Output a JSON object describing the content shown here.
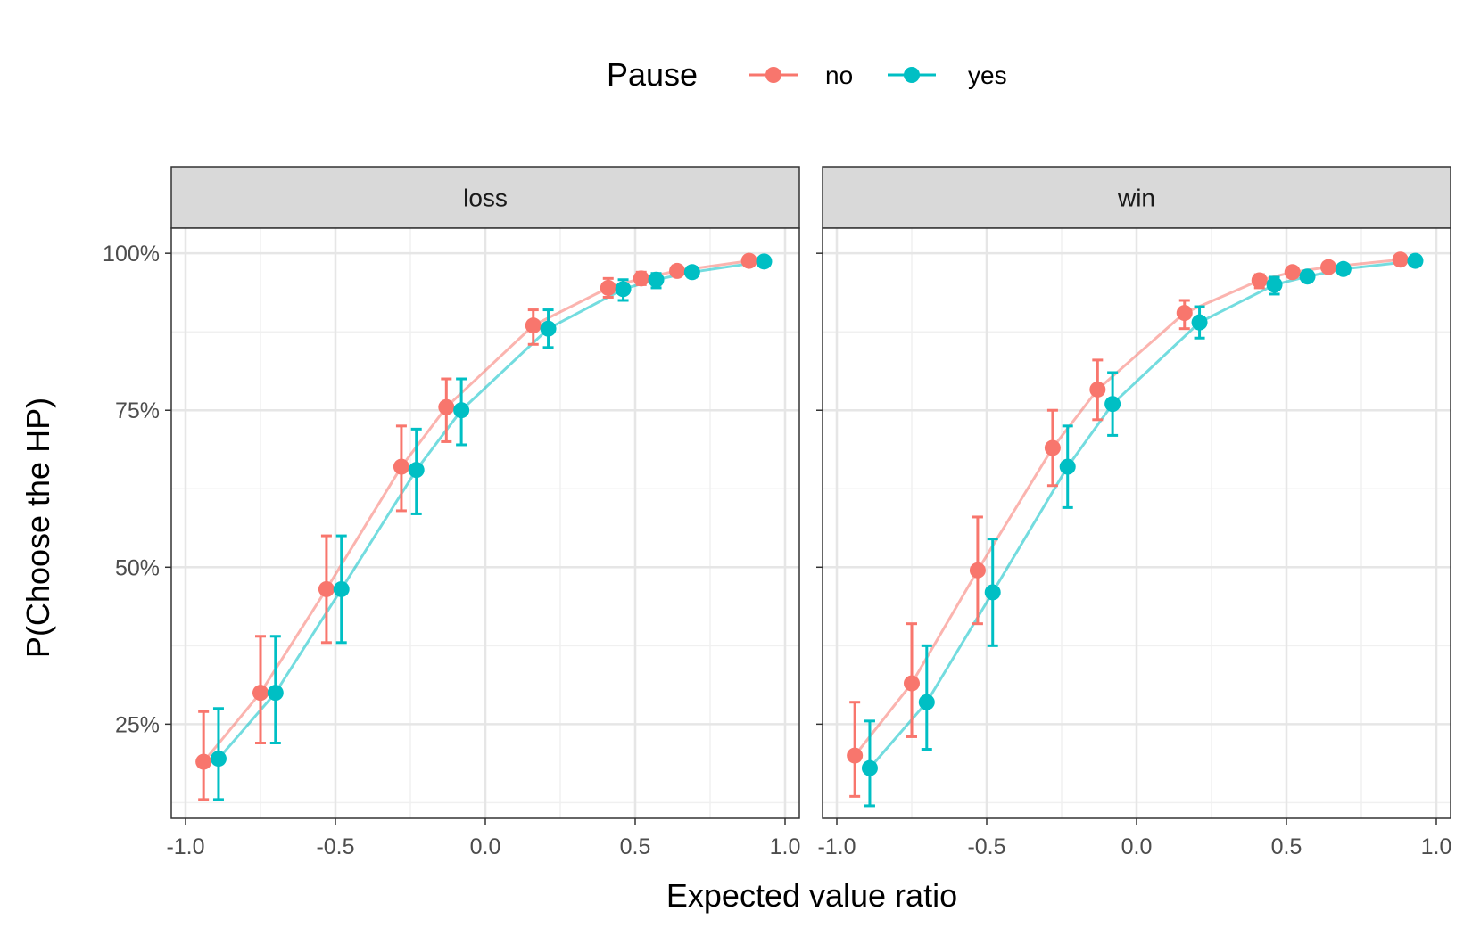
{
  "chart_data": {
    "type": "line",
    "facets": [
      "loss",
      "win"
    ],
    "xlabel": "Expected value ratio",
    "ylabel": "P(Choose the HP)",
    "xlim": [
      -1.0,
      1.0
    ],
    "ylim": [
      0.1,
      1.04
    ],
    "x_ticks": [
      -1.0,
      -0.5,
      0.0,
      0.5,
      1.0
    ],
    "x_tick_labels": [
      "-1.0",
      "-0.5",
      "0.0",
      "0.5",
      "1.0"
    ],
    "y_ticks": [
      0.25,
      0.5,
      0.75,
      1.0
    ],
    "y_tick_labels": [
      "25%",
      "50%",
      "75%",
      "100%"
    ],
    "grid": true,
    "legend": {
      "title": "Pause",
      "position": "top",
      "entries": [
        {
          "label": "no",
          "color": "#F8766D"
        },
        {
          "label": "yes",
          "color": "#00BFC4"
        }
      ]
    },
    "panels": [
      {
        "facet": "loss",
        "series": [
          {
            "name": "no",
            "color": "#F8766D",
            "points": [
              {
                "x": -0.94,
                "y": 0.19,
                "lo": 0.13,
                "hi": 0.27
              },
              {
                "x": -0.75,
                "y": 0.3,
                "lo": 0.22,
                "hi": 0.39
              },
              {
                "x": -0.53,
                "y": 0.465,
                "lo": 0.38,
                "hi": 0.55
              },
              {
                "x": -0.28,
                "y": 0.66,
                "lo": 0.59,
                "hi": 0.725
              },
              {
                "x": -0.13,
                "y": 0.755,
                "lo": 0.7,
                "hi": 0.8
              },
              {
                "x": 0.16,
                "y": 0.885,
                "lo": 0.855,
                "hi": 0.91
              },
              {
                "x": 0.41,
                "y": 0.945,
                "lo": 0.93,
                "hi": 0.96
              },
              {
                "x": 0.52,
                "y": 0.96,
                "lo": 0.95,
                "hi": 0.97
              },
              {
                "x": 0.64,
                "y": 0.972,
                "lo": 0.965,
                "hi": 0.98
              },
              {
                "x": 0.88,
                "y": 0.988,
                "lo": 0.985,
                "hi": 0.991
              }
            ]
          },
          {
            "name": "yes",
            "color": "#00BFC4",
            "points": [
              {
                "x": -0.89,
                "y": 0.195,
                "lo": 0.13,
                "hi": 0.275
              },
              {
                "x": -0.7,
                "y": 0.3,
                "lo": 0.22,
                "hi": 0.39
              },
              {
                "x": -0.48,
                "y": 0.465,
                "lo": 0.38,
                "hi": 0.55
              },
              {
                "x": -0.23,
                "y": 0.655,
                "lo": 0.585,
                "hi": 0.72
              },
              {
                "x": -0.08,
                "y": 0.75,
                "lo": 0.695,
                "hi": 0.8
              },
              {
                "x": 0.21,
                "y": 0.88,
                "lo": 0.85,
                "hi": 0.91
              },
              {
                "x": 0.46,
                "y": 0.943,
                "lo": 0.925,
                "hi": 0.958
              },
              {
                "x": 0.57,
                "y": 0.958,
                "lo": 0.945,
                "hi": 0.968
              },
              {
                "x": 0.69,
                "y": 0.97,
                "lo": 0.962,
                "hi": 0.978
              },
              {
                "x": 0.93,
                "y": 0.987,
                "lo": 0.984,
                "hi": 0.99
              }
            ]
          }
        ]
      },
      {
        "facet": "win",
        "series": [
          {
            "name": "no",
            "color": "#F8766D",
            "points": [
              {
                "x": -0.94,
                "y": 0.2,
                "lo": 0.135,
                "hi": 0.285
              },
              {
                "x": -0.75,
                "y": 0.315,
                "lo": 0.23,
                "hi": 0.41
              },
              {
                "x": -0.53,
                "y": 0.495,
                "lo": 0.41,
                "hi": 0.58
              },
              {
                "x": -0.28,
                "y": 0.69,
                "lo": 0.63,
                "hi": 0.75
              },
              {
                "x": -0.13,
                "y": 0.783,
                "lo": 0.735,
                "hi": 0.83
              },
              {
                "x": 0.16,
                "y": 0.905,
                "lo": 0.88,
                "hi": 0.925
              },
              {
                "x": 0.41,
                "y": 0.957,
                "lo": 0.945,
                "hi": 0.966
              },
              {
                "x": 0.52,
                "y": 0.97,
                "lo": 0.962,
                "hi": 0.976
              },
              {
                "x": 0.64,
                "y": 0.978,
                "lo": 0.972,
                "hi": 0.984
              },
              {
                "x": 0.88,
                "y": 0.99,
                "lo": 0.987,
                "hi": 0.993
              }
            ]
          },
          {
            "name": "yes",
            "color": "#00BFC4",
            "points": [
              {
                "x": -0.89,
                "y": 0.18,
                "lo": 0.12,
                "hi": 0.255
              },
              {
                "x": -0.7,
                "y": 0.285,
                "lo": 0.21,
                "hi": 0.375
              },
              {
                "x": -0.48,
                "y": 0.46,
                "lo": 0.375,
                "hi": 0.545
              },
              {
                "x": -0.23,
                "y": 0.66,
                "lo": 0.595,
                "hi": 0.725
              },
              {
                "x": -0.08,
                "y": 0.76,
                "lo": 0.71,
                "hi": 0.81
              },
              {
                "x": 0.21,
                "y": 0.89,
                "lo": 0.865,
                "hi": 0.915
              },
              {
                "x": 0.46,
                "y": 0.95,
                "lo": 0.935,
                "hi": 0.962
              },
              {
                "x": 0.57,
                "y": 0.963,
                "lo": 0.955,
                "hi": 0.971
              },
              {
                "x": 0.69,
                "y": 0.975,
                "lo": 0.968,
                "hi": 0.982
              },
              {
                "x": 0.93,
                "y": 0.988,
                "lo": 0.985,
                "hi": 0.991
              }
            ]
          }
        ]
      }
    ]
  }
}
